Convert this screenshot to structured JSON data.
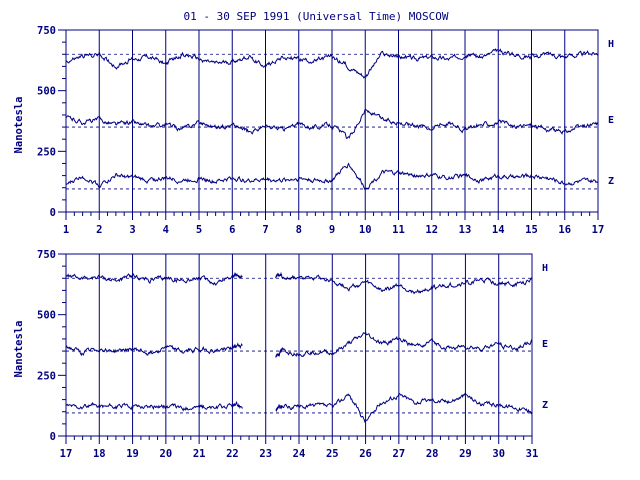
{
  "chart_data": {
    "type": "line",
    "title": "01 - 30 SEP 1991 (Universal Time) MOSCOW",
    "ylabel": "Nanotesla",
    "xlabel": "",
    "grid": true,
    "ylim": [
      0,
      750
    ],
    "ytick_labels": [
      "0",
      "250",
      "500",
      "750"
    ],
    "ytick_values": [
      0,
      250,
      500,
      750
    ],
    "baselines": {
      "H": 650,
      "E": 350,
      "Z": 95
    },
    "panels": [
      {
        "xlim": [
          1,
          17
        ],
        "xtick_labels": [
          "1",
          "2",
          "3",
          "4",
          "5",
          "6",
          "7",
          "8",
          "9",
          "10",
          "11",
          "12",
          "13",
          "14",
          "15",
          "16",
          "17"
        ],
        "series": [
          {
            "name": "H",
            "x": [
              1,
              1.5,
              2,
              2.5,
              3,
              3.5,
              4,
              4.5,
              5,
              5.5,
              6,
              6.5,
              7,
              7.5,
              8,
              8.5,
              9,
              9.5,
              10,
              10.5,
              11,
              11.5,
              12,
              12.5,
              13,
              13.5,
              14,
              14.5,
              15,
              15.5,
              16,
              16.5,
              17
            ],
            "y": [
              620,
              640,
              650,
              600,
              630,
              640,
              610,
              650,
              630,
              610,
              620,
              640,
              600,
              640,
              630,
              620,
              640,
              600,
              560,
              650,
              640,
              630,
              640,
              630,
              650,
              640,
              660,
              650,
              640,
              650,
              640,
              650,
              655
            ]
          },
          {
            "name": "E",
            "x": [
              1,
              1.5,
              2,
              2.5,
              3,
              3.5,
              4,
              4.5,
              5,
              5.5,
              6,
              6.5,
              7,
              7.5,
              8,
              8.5,
              9,
              9.5,
              10,
              10.5,
              11,
              11.5,
              12,
              12.5,
              13,
              13.5,
              14,
              14.5,
              15,
              15.5,
              16,
              16.5,
              17
            ],
            "y": [
              390,
              370,
              380,
              360,
              370,
              350,
              360,
              340,
              370,
              350,
              360,
              330,
              350,
              340,
              360,
              350,
              360,
              300,
              420,
              380,
              370,
              360,
              350,
              370,
              340,
              360,
              370,
              350,
              360,
              340,
              330,
              350,
              365
            ]
          },
          {
            "name": "Z",
            "x": [
              1,
              1.5,
              2,
              2.5,
              3,
              3.5,
              4,
              4.5,
              5,
              5.5,
              6,
              6.5,
              7,
              7.5,
              8,
              8.5,
              9,
              9.5,
              10,
              10.5,
              11,
              11.5,
              12,
              12.5,
              13,
              13.5,
              14,
              14.5,
              15,
              15.5,
              16,
              16.5,
              17
            ],
            "y": [
              110,
              150,
              110,
              150,
              140,
              130,
              140,
              130,
              140,
              125,
              140,
              130,
              135,
              130,
              140,
              130,
              130,
              200,
              100,
              160,
              160,
              150,
              150,
              140,
              150,
              130,
              150,
              140,
              150,
              140,
              120,
              125,
              125
            ]
          }
        ]
      },
      {
        "xlim": [
          17,
          31
        ],
        "xtick_labels": [
          "17",
          "18",
          "19",
          "20",
          "21",
          "22",
          "23",
          "24",
          "25",
          "26",
          "27",
          "28",
          "29",
          "30",
          "31"
        ],
        "series": [
          {
            "name": "H",
            "x": [
              17,
              17.5,
              18,
              18.5,
              19,
              19.5,
              20,
              20.5,
              21,
              21.5,
              22,
              22.3,
              null,
              23.3,
              23.5,
              24,
              24.5,
              25,
              25.5,
              26,
              26.5,
              27,
              27.5,
              28,
              28.5,
              29,
              29.5,
              30,
              30.5,
              31
            ],
            "y": [
              660,
              650,
              655,
              640,
              660,
              640,
              650,
              640,
              650,
              630,
              660,
              660,
              null,
              650,
              660,
              650,
              660,
              640,
              610,
              630,
              600,
              620,
              590,
              610,
              620,
              630,
              640,
              630,
              620,
              640
            ]
          },
          {
            "name": "E",
            "x": [
              17,
              17.5,
              18,
              18.5,
              19,
              19.5,
              20,
              20.5,
              21,
              21.5,
              22,
              22.3,
              null,
              23.3,
              23.5,
              24,
              24.5,
              25,
              25.5,
              26,
              26.5,
              27,
              27.5,
              28,
              28.5,
              29,
              29.5,
              30,
              30.5,
              31
            ],
            "y": [
              370,
              340,
              360,
              350,
              360,
              340,
              370,
              345,
              360,
              350,
              365,
              375,
              null,
              330,
              350,
              340,
              350,
              340,
              380,
              420,
              380,
              400,
              370,
              390,
              360,
              370,
              360,
              380,
              360,
              390
            ]
          },
          {
            "name": "Z",
            "x": [
              17,
              17.5,
              18,
              18.5,
              19,
              19.5,
              20,
              20.5,
              21,
              21.5,
              22,
              22.3,
              null,
              23.3,
              23.5,
              24,
              24.5,
              25,
              25.5,
              26,
              26.5,
              27,
              27.5,
              28,
              28.5,
              29,
              29.5,
              30,
              30.5,
              31
            ],
            "y": [
              125,
              120,
              125,
              120,
              125,
              120,
              125,
              115,
              120,
              115,
              125,
              125,
              null,
              110,
              120,
              120,
              125,
              120,
              170,
              60,
              140,
              170,
              140,
              150,
              140,
              170,
              130,
              130,
              120,
              100
            ]
          }
        ]
      }
    ]
  }
}
